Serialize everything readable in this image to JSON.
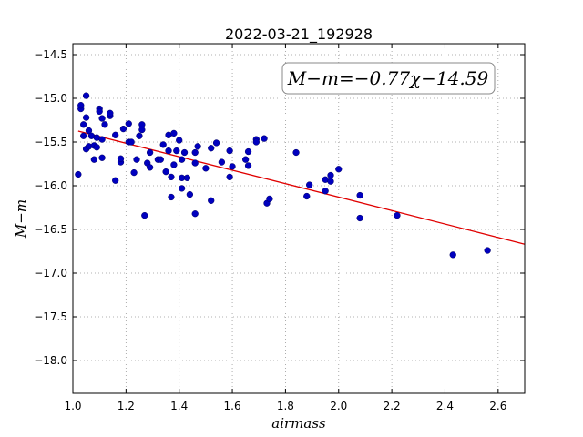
{
  "chart_data": {
    "type": "scatter",
    "title": "2022-03-21_192928",
    "xlabel": "airmass",
    "ylabel": "M−m",
    "annotation": "M−m=−0.77χ−14.59",
    "xlim": [
      1.0,
      2.7
    ],
    "ylim": [
      -18.375,
      -14.375
    ],
    "x_ticks": [
      1.0,
      1.2,
      1.4,
      1.6,
      1.8,
      2.0,
      2.2,
      2.4,
      2.6
    ],
    "x_tick_labels": [
      "1.0",
      "1.2",
      "1.4",
      "1.6",
      "1.8",
      "2.0",
      "2.2",
      "2.4",
      "2.6"
    ],
    "y_ticks": [
      -14.5,
      -15.0,
      -15.5,
      -16.0,
      -16.5,
      -17.0,
      -17.5,
      -18.0
    ],
    "y_tick_labels": [
      "−14.5",
      "−15.0",
      "−15.5",
      "−16.0",
      "−16.5",
      "−17.0",
      "−17.5",
      "−18.0"
    ],
    "grid": true,
    "colors": {
      "points": "#0000bf",
      "fit_line": "#e00000"
    },
    "fit": {
      "slope": -0.77,
      "intercept": -14.59,
      "x_range": [
        1.02,
        2.7
      ]
    },
    "points": [
      [
        1.02,
        -15.87
      ],
      [
        1.03,
        -15.12
      ],
      [
        1.03,
        -15.08
      ],
      [
        1.04,
        -15.43
      ],
      [
        1.04,
        -15.3
      ],
      [
        1.05,
        -15.22
      ],
      [
        1.05,
        -14.97
      ],
      [
        1.06,
        -15.37
      ],
      [
        1.05,
        -15.58
      ],
      [
        1.06,
        -15.55
      ],
      [
        1.07,
        -15.43
      ],
      [
        1.08,
        -15.54
      ],
      [
        1.08,
        -15.7
      ],
      [
        1.09,
        -15.45
      ],
      [
        1.09,
        -15.56
      ],
      [
        1.1,
        -15.12
      ],
      [
        1.1,
        -15.15
      ],
      [
        1.11,
        -15.68
      ],
      [
        1.11,
        -15.47
      ],
      [
        1.11,
        -15.23
      ],
      [
        1.12,
        -15.3
      ],
      [
        1.14,
        -15.2
      ],
      [
        1.14,
        -15.17
      ],
      [
        1.16,
        -15.42
      ],
      [
        1.16,
        -15.94
      ],
      [
        1.18,
        -15.73
      ],
      [
        1.18,
        -15.69
      ],
      [
        1.19,
        -15.35
      ],
      [
        1.21,
        -15.29
      ],
      [
        1.21,
        -15.5
      ],
      [
        1.22,
        -15.5
      ],
      [
        1.23,
        -15.85
      ],
      [
        1.24,
        -15.7
      ],
      [
        1.25,
        -15.43
      ],
      [
        1.26,
        -15.3
      ],
      [
        1.26,
        -15.36
      ],
      [
        1.27,
        -16.34
      ],
      [
        1.28,
        -15.74
      ],
      [
        1.29,
        -15.79
      ],
      [
        1.29,
        -15.62
      ],
      [
        1.32,
        -15.7
      ],
      [
        1.33,
        -15.7
      ],
      [
        1.34,
        -15.53
      ],
      [
        1.35,
        -15.84
      ],
      [
        1.36,
        -15.6
      ],
      [
        1.36,
        -15.42
      ],
      [
        1.37,
        -15.9
      ],
      [
        1.37,
        -16.13
      ],
      [
        1.38,
        -15.76
      ],
      [
        1.38,
        -15.4
      ],
      [
        1.39,
        -15.6
      ],
      [
        1.4,
        -15.48
      ],
      [
        1.41,
        -15.7
      ],
      [
        1.41,
        -15.91
      ],
      [
        1.41,
        -16.03
      ],
      [
        1.42,
        -15.62
      ],
      [
        1.43,
        -15.91
      ],
      [
        1.44,
        -16.1
      ],
      [
        1.46,
        -15.74
      ],
      [
        1.46,
        -15.62
      ],
      [
        1.46,
        -16.32
      ],
      [
        1.47,
        -15.55
      ],
      [
        1.5,
        -15.8
      ],
      [
        1.52,
        -15.57
      ],
      [
        1.52,
        -16.17
      ],
      [
        1.54,
        -15.51
      ],
      [
        1.56,
        -15.73
      ],
      [
        1.59,
        -15.6
      ],
      [
        1.59,
        -15.9
      ],
      [
        1.6,
        -15.78
      ],
      [
        1.65,
        -15.7
      ],
      [
        1.66,
        -15.61
      ],
      [
        1.66,
        -15.77
      ],
      [
        1.69,
        -15.47
      ],
      [
        1.69,
        -15.5
      ],
      [
        1.72,
        -15.46
      ],
      [
        1.73,
        -16.2
      ],
      [
        1.74,
        -16.15
      ],
      [
        1.84,
        -15.62
      ],
      [
        1.88,
        -16.12
      ],
      [
        1.89,
        -15.99
      ],
      [
        1.95,
        -15.93
      ],
      [
        1.95,
        -16.06
      ],
      [
        1.97,
        -15.88
      ],
      [
        1.97,
        -15.95
      ],
      [
        2.0,
        -15.81
      ],
      [
        2.08,
        -16.11
      ],
      [
        2.08,
        -16.37
      ],
      [
        2.22,
        -16.34
      ],
      [
        2.43,
        -16.79
      ],
      [
        2.56,
        -16.74
      ]
    ]
  }
}
